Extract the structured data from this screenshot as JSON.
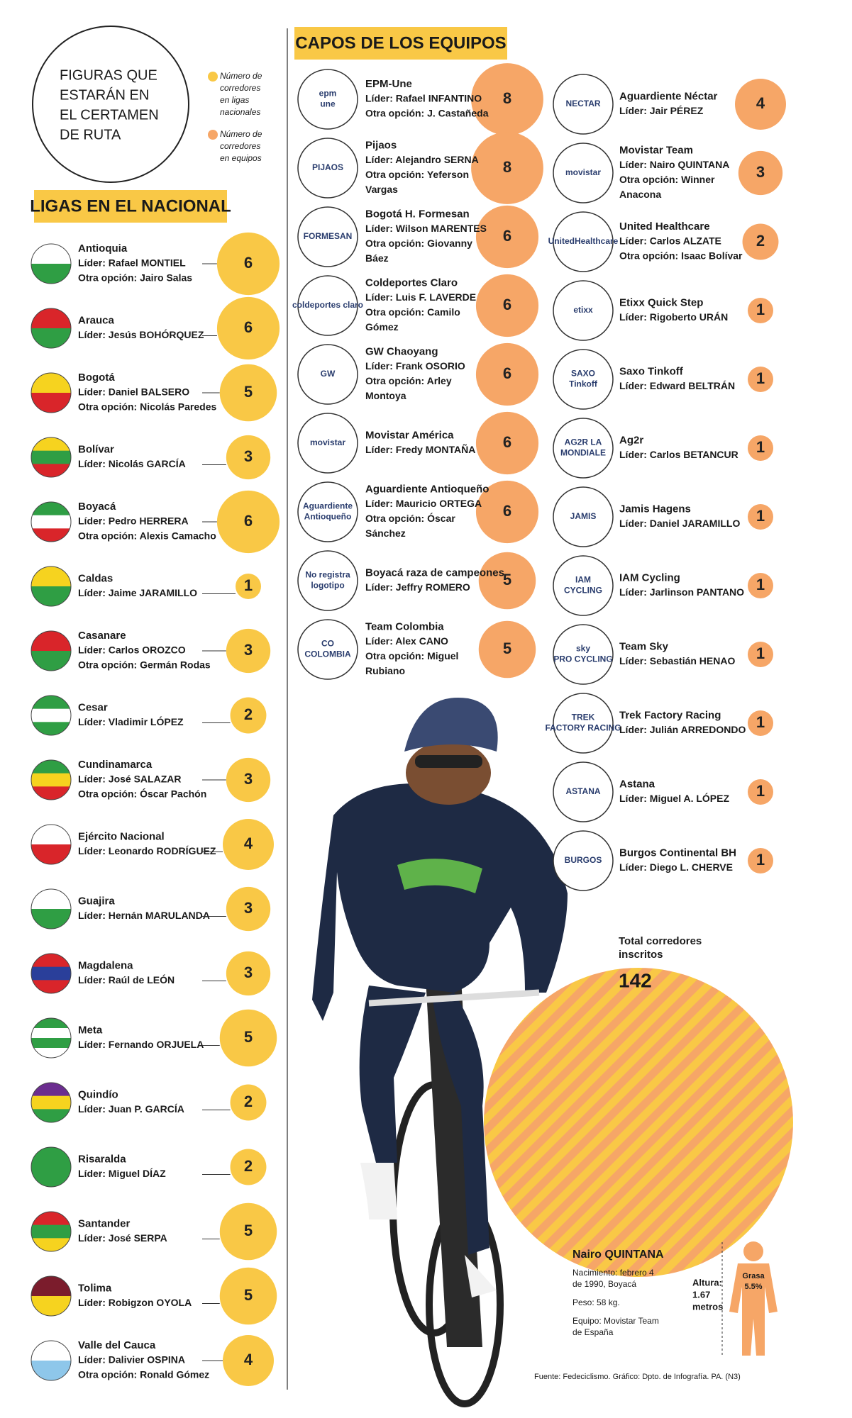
{
  "header": {
    "title_lines": [
      "FIGURAS QUE",
      "ESTARÁN EN",
      "EL CERTAMEN",
      "DE RUTA"
    ],
    "legend": [
      {
        "label_lines": [
          "Número de",
          "corredores",
          "en ligas",
          "nacionales"
        ],
        "color": "#f9c846"
      },
      {
        "label_lines": [
          "Número de",
          "corredores",
          "en equipos"
        ],
        "color": "#f6a667"
      }
    ]
  },
  "leagues": {
    "title": "LIGAS EN EL NACIONAL",
    "color": "#f9c846",
    "items": [
      {
        "name": "Antioquia",
        "lines": [
          "Líder: Rafael MONTIEL",
          "Otra opción: Jairo Salas"
        ],
        "value": 6
      },
      {
        "name": "Arauca",
        "lines": [
          "Líder: Jesús BOHÓRQUEZ"
        ],
        "value": 6
      },
      {
        "name": "Bogotá",
        "lines": [
          "Líder: Daniel BALSERO",
          "Otra opción: Nicolás Paredes"
        ],
        "value": 5
      },
      {
        "name": "Bolívar",
        "lines": [
          "Líder: Nicolás GARCÍA"
        ],
        "value": 3
      },
      {
        "name": "Boyacá",
        "lines": [
          "Líder: Pedro HERRERA",
          "Otra opción: Alexis Camacho"
        ],
        "value": 6
      },
      {
        "name": "Caldas",
        "lines": [
          "Líder: Jaime JARAMILLO"
        ],
        "value": 1
      },
      {
        "name": "Casanare",
        "lines": [
          "Líder: Carlos OROZCO",
          "Otra opción: Germán Rodas"
        ],
        "value": 3
      },
      {
        "name": "Cesar",
        "lines": [
          "Líder: Vladimir LÓPEZ"
        ],
        "value": 2
      },
      {
        "name": "Cundinamarca",
        "lines": [
          "Líder: José SALAZAR",
          "Otra opción: Óscar Pachón"
        ],
        "value": 3
      },
      {
        "name": "Ejército Nacional",
        "lines": [
          "Líder: Leonardo RODRÍGUEZ"
        ],
        "value": 4
      },
      {
        "name": "Guajira",
        "lines": [
          "Líder: Hernán MARULANDA"
        ],
        "value": 3
      },
      {
        "name": "Magdalena",
        "lines": [
          "Líder: Raúl de LEÓN"
        ],
        "value": 3
      },
      {
        "name": "Meta",
        "lines": [
          "Líder: Fernando ORJUELA"
        ],
        "value": 5
      },
      {
        "name": "Quindío",
        "lines": [
          "Líder: Juan P. GARCÍA"
        ],
        "value": 2
      },
      {
        "name": "Risaralda",
        "lines": [
          "Líder: Miguel DÍAZ"
        ],
        "value": 2
      },
      {
        "name": "Santander",
        "lines": [
          "Líder: José SERPA"
        ],
        "value": 5
      },
      {
        "name": "Tolima",
        "lines": [
          "Líder: Robigzon OYOLA"
        ],
        "value": 5
      },
      {
        "name": "Valle del Cauca",
        "lines": [
          "Líder: Dalivier OSPINA",
          "Otra opción: Ronald Gómez"
        ],
        "value": 4
      }
    ]
  },
  "teams": {
    "title": "CAPOS DE LOS EQUIPOS",
    "color": "#f6a667",
    "left": [
      {
        "name": "EPM-Une",
        "logo": [
          "epm",
          "une"
        ],
        "lines": [
          "Líder: Rafael INFANTINO",
          "Otra opción: J. Castañeda"
        ],
        "value": 8
      },
      {
        "name": "Pijaos",
        "logo": [
          "PIJAOS"
        ],
        "lines": [
          "Líder: Alejandro SERNA",
          "Otra opción: Yeferson",
          "Vargas"
        ],
        "value": 8
      },
      {
        "name": "Bogotá H. Formesan",
        "logo": [
          "FORMESAN"
        ],
        "lines": [
          "Líder: Wilson MARENTES",
          "Otra opción: Giovanny",
          "Báez"
        ],
        "value": 6
      },
      {
        "name": "Coldeportes Claro",
        "logo": [
          "coldeportes claro"
        ],
        "lines": [
          "Líder: Luis F. LAVERDE",
          "Otra opción: Camilo",
          "Gómez"
        ],
        "value": 6
      },
      {
        "name": "GW Chaoyang",
        "logo": [
          "GW"
        ],
        "lines": [
          "Líder: Frank OSORIO",
          "Otra opción: Arley",
          "Montoya"
        ],
        "value": 6
      },
      {
        "name": "Movistar América",
        "logo": [
          "movistar"
        ],
        "lines": [
          "Líder: Fredy MONTAÑA"
        ],
        "value": 6
      },
      {
        "name": "Aguardiente Antioqueño",
        "logo": [
          "Aguardiente",
          "Antioqueño"
        ],
        "lines": [
          "Líder: Mauricio ORTEGA",
          "Otra opción: Óscar",
          "Sánchez"
        ],
        "value": 6
      },
      {
        "name": "Boyacá raza de campeones",
        "logo": [
          "No registra",
          "logotipo"
        ],
        "lines": [
          "Líder: Jeffry ROMERO"
        ],
        "value": 5
      },
      {
        "name": "Team Colombia",
        "logo": [
          "CO",
          "COLOMBIA"
        ],
        "lines": [
          "Líder: Alex CANO",
          "Otra opción: Miguel",
          "Rubiano"
        ],
        "value": 5
      }
    ],
    "right": [
      {
        "name": "Aguardiente Néctar",
        "logo": [
          "NECTAR"
        ],
        "lines": [
          "Líder: Jair PÉREZ"
        ],
        "value": 4
      },
      {
        "name": "Movistar Team",
        "logo": [
          "movistar"
        ],
        "lines": [
          "Líder: Nairo QUINTANA",
          "Otra opción: Winner",
          "Anacona"
        ],
        "value": 3
      },
      {
        "name": "United Healthcare",
        "logo": [
          "UnitedHealthcare"
        ],
        "lines": [
          "Líder: Carlos ALZATE",
          "Otra opción: Isaac Bolívar"
        ],
        "value": 2
      },
      {
        "name": "Etixx Quick Step",
        "logo": [
          "etixx"
        ],
        "lines": [
          "Líder: Rigoberto URÁN"
        ],
        "value": 1
      },
      {
        "name": "Saxo Tinkoff",
        "logo": [
          "SAXO",
          "Tinkoff"
        ],
        "lines": [
          "Líder: Edward BELTRÁN"
        ],
        "value": 1
      },
      {
        "name": "Ag2r",
        "logo": [
          "AG2R LA",
          "MONDIALE"
        ],
        "lines": [
          "Líder: Carlos BETANCUR"
        ],
        "value": 1
      },
      {
        "name": "Jamis Hagens",
        "logo": [
          "JAMIS"
        ],
        "lines": [
          "Líder: Daniel JARAMILLO"
        ],
        "value": 1
      },
      {
        "name": "IAM Cycling",
        "logo": [
          "IAM",
          "CYCLING"
        ],
        "lines": [
          "Líder: Jarlinson PANTANO"
        ],
        "value": 1
      },
      {
        "name": "Team Sky",
        "logo": [
          "sky",
          "PRO CYCLING"
        ],
        "lines": [
          "Líder: Sebastián HENAO"
        ],
        "value": 1
      },
      {
        "name": "Trek Factory Racing",
        "logo": [
          "TREK",
          "FACTORY RACING"
        ],
        "lines": [
          "Líder: Julián ARREDONDO"
        ],
        "value": 1
      },
      {
        "name": "Astana",
        "logo": [
          "ASTANA"
        ],
        "lines": [
          "Líder: Miguel A. LÓPEZ"
        ],
        "value": 1
      },
      {
        "name": "Burgos Continental BH",
        "logo": [
          "BURGOS"
        ],
        "lines": [
          "Líder: Diego L. CHERVE"
        ],
        "value": 1
      }
    ]
  },
  "total": {
    "label_lines": [
      "Total corredores",
      "inscritos"
    ],
    "value": 142
  },
  "profile": {
    "name": "Nairo QUINTANA",
    "lines": [
      "Nacimiento: febrero 4",
      "de 1990, Boyacá",
      "Peso: 58 kg.",
      "Equipo: Movistar Team",
      "de España"
    ],
    "height_lines": [
      "Altura:",
      "1.67",
      "metros"
    ],
    "fat_lines": [
      "Grasa",
      "5.5%"
    ]
  },
  "source": "Fuente: Fedeciclismo. Gráfico: Dpto. de Infografía. PA. (N3)"
}
